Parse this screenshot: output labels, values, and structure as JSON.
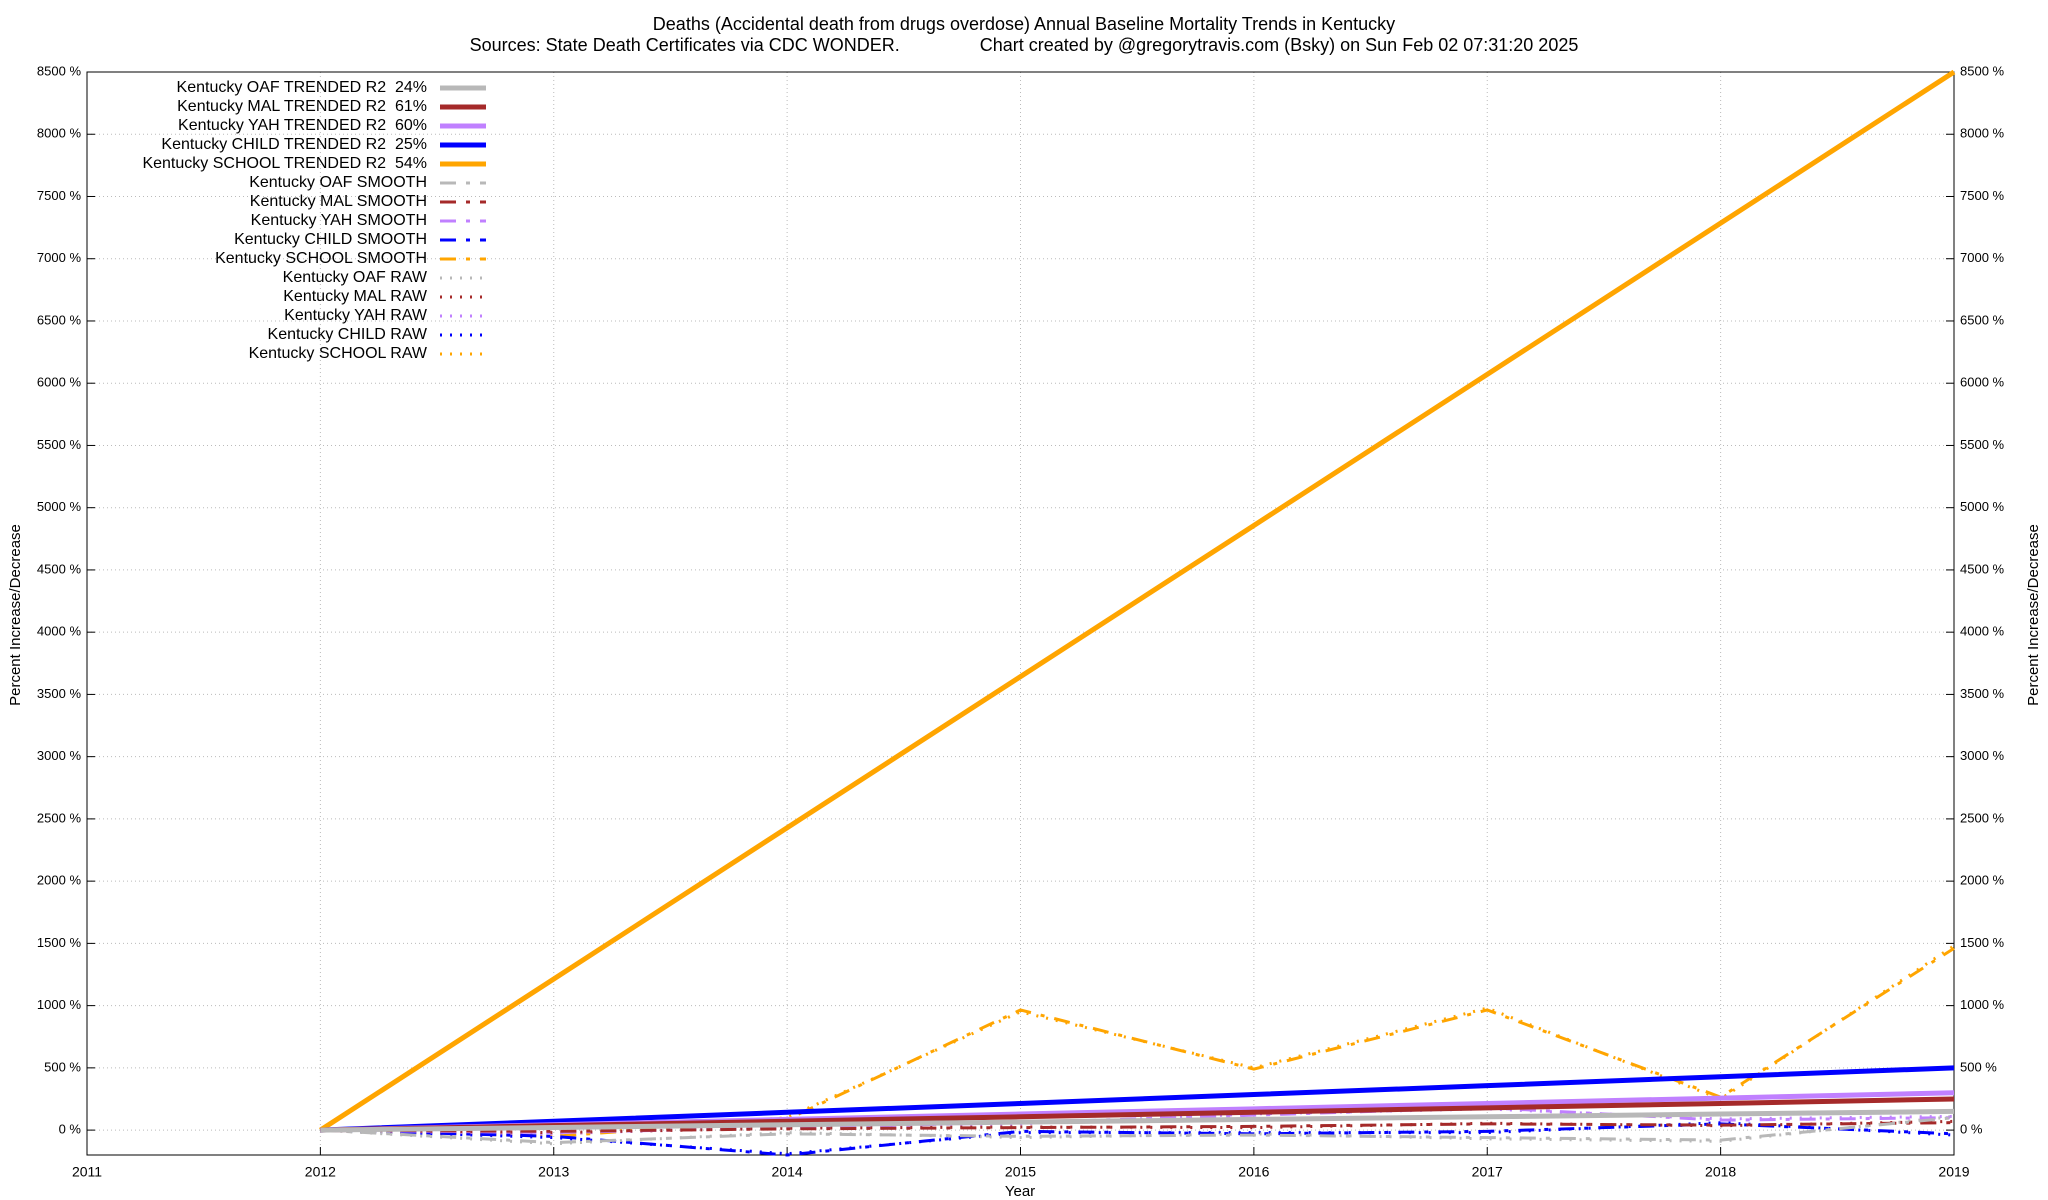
{
  "chart_data": {
    "type": "line",
    "title": "Deaths (Accidental death from drugs overdose)  Annual Baseline Mortality Trends in Kentucky",
    "subtitle": "Sources: State Death Certificates via CDC WONDER.                Chart created by @gregorytravis.com (Bsky) on Sun Feb 02 07:31:20 2025",
    "x_label": "Year",
    "y_label": "Percent Increase/Decrease",
    "y2_label": "Percent Increase/Decrease",
    "x": [
      2012,
      2013,
      2014,
      2015,
      2016,
      2017,
      2018,
      2019
    ],
    "xlim": [
      2011,
      2019
    ],
    "xticks": [
      2011,
      2012,
      2013,
      2014,
      2015,
      2016,
      2017,
      2018,
      2019
    ],
    "ylim": [
      -200,
      8500
    ],
    "yticks": [
      {
        "value": 0,
        "label": "0 %"
      },
      {
        "value": 500,
        "label": "500 %"
      },
      {
        "value": 1000,
        "label": "1000 %"
      },
      {
        "value": 1500,
        "label": "1500 %"
      },
      {
        "value": 2000,
        "label": "2000 %"
      },
      {
        "value": 2500,
        "label": "2500 %"
      },
      {
        "value": 3000,
        "label": "3000 %"
      },
      {
        "value": 3500,
        "label": "3500 %"
      },
      {
        "value": 4000,
        "label": "4000 %"
      },
      {
        "value": 4500,
        "label": "4500 %"
      },
      {
        "value": 5000,
        "label": "5000 %"
      },
      {
        "value": 5500,
        "label": "5500 %"
      },
      {
        "value": 6000,
        "label": "6000 %"
      },
      {
        "value": 6500,
        "label": "6500 %"
      },
      {
        "value": 7000,
        "label": "7000 %"
      },
      {
        "value": 7500,
        "label": "7500 %"
      },
      {
        "value": 8000,
        "label": "8000 %"
      },
      {
        "value": 8500,
        "label": "8500 %"
      }
    ],
    "grid": true,
    "legend": "top-left",
    "series": [
      {
        "name": "Kentucky OAF TRENDED R2  24%",
        "color": "#b8b8b8",
        "line_style": "solid",
        "values": [
          0,
          21,
          43,
          64,
          86,
          107,
          129,
          150
        ]
      },
      {
        "name": "Kentucky MAL TRENDED R2  61%",
        "color": "#a52a2a",
        "line_style": "solid",
        "values": [
          0,
          36,
          71,
          107,
          143,
          179,
          214,
          250
        ]
      },
      {
        "name": "Kentucky YAH TRENDED R2  60%",
        "color": "#c080ff",
        "line_style": "solid",
        "values": [
          0,
          43,
          86,
          129,
          171,
          214,
          257,
          300
        ]
      },
      {
        "name": "Kentucky CHILD TRENDED R2  25%",
        "color": "#0000ff",
        "line_style": "solid",
        "values": [
          0,
          71,
          143,
          214,
          286,
          357,
          429,
          500
        ]
      },
      {
        "name": "Kentucky SCHOOL TRENDED R2  54%",
        "color": "#ffa500",
        "line_style": "solid",
        "values": [
          0,
          1214,
          2429,
          3643,
          4857,
          6071,
          7286,
          8500
        ]
      },
      {
        "name": "Kentucky OAF SMOOTH",
        "color": "#b8b8b8",
        "line_style": "dashdot",
        "values": [
          0,
          -100,
          -30,
          -50,
          -40,
          -60,
          -80,
          100
        ]
      },
      {
        "name": "Kentucky MAL SMOOTH",
        "color": "#a52a2a",
        "line_style": "dashdot",
        "values": [
          0,
          -10,
          10,
          20,
          30,
          50,
          40,
          60
        ]
      },
      {
        "name": "Kentucky YAH SMOOTH",
        "color": "#c080ff",
        "line_style": "dashdot",
        "values": [
          0,
          -20,
          20,
          60,
          120,
          180,
          80,
          100
        ]
      },
      {
        "name": "Kentucky CHILD SMOOTH",
        "color": "#0000ff",
        "line_style": "dashdot",
        "values": [
          0,
          -50,
          -200,
          -10,
          -30,
          -10,
          50,
          -30
        ]
      },
      {
        "name": "Kentucky SCHOOL SMOOTH",
        "color": "#ffa500",
        "line_style": "dashdot",
        "values": [
          0,
          -50,
          85,
          965,
          490,
          965,
          265,
          1460
        ]
      },
      {
        "name": "Kentucky OAF RAW",
        "color": "#b8b8b8",
        "line_style": "dotted",
        "values": [
          0,
          -110,
          -20,
          -60,
          -30,
          -70,
          -90,
          110
        ]
      },
      {
        "name": "Kentucky MAL RAW",
        "color": "#a52a2a",
        "line_style": "dotted",
        "values": [
          0,
          -20,
          15,
          25,
          20,
          55,
          35,
          70
        ]
      },
      {
        "name": "Kentucky YAH RAW",
        "color": "#c080ff",
        "line_style": "dotted",
        "values": [
          0,
          -30,
          30,
          50,
          130,
          170,
          90,
          110
        ]
      },
      {
        "name": "Kentucky CHILD RAW",
        "color": "#0000ff",
        "line_style": "dotted",
        "values": [
          0,
          -60,
          -190,
          -20,
          -20,
          -20,
          60,
          -40
        ]
      },
      {
        "name": "Kentucky SCHOOL RAW",
        "color": "#ffa500",
        "line_style": "dotted",
        "values": [
          0,
          -40,
          100,
          950,
          500,
          980,
          250,
          1480
        ]
      }
    ]
  }
}
